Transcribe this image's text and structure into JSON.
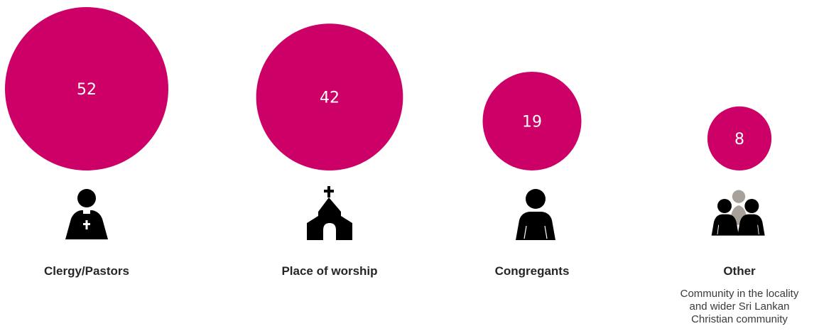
{
  "chart_data": {
    "type": "bubble",
    "title": "",
    "categories": [
      "Clergy/Pastors",
      "Place of worship",
      "Congregants",
      "Other"
    ],
    "values": [
      52,
      42,
      19,
      8
    ],
    "descriptions": [
      "",
      "",
      "",
      "Community in the locality and wider Sri Lankan Christian community"
    ],
    "icons": [
      "clergy-icon",
      "church-icon",
      "person-icon",
      "group-icon"
    ],
    "bubble_color": "#CC0066"
  },
  "labels": {
    "c0": "Clergy/Pastors",
    "c1": "Place of worship",
    "c2": "Congregants",
    "c3": "Other",
    "c3_desc_1": "Community in the locality",
    "c3_desc_2": "and wider Sri Lankan",
    "c3_desc_3": "Christian community"
  }
}
